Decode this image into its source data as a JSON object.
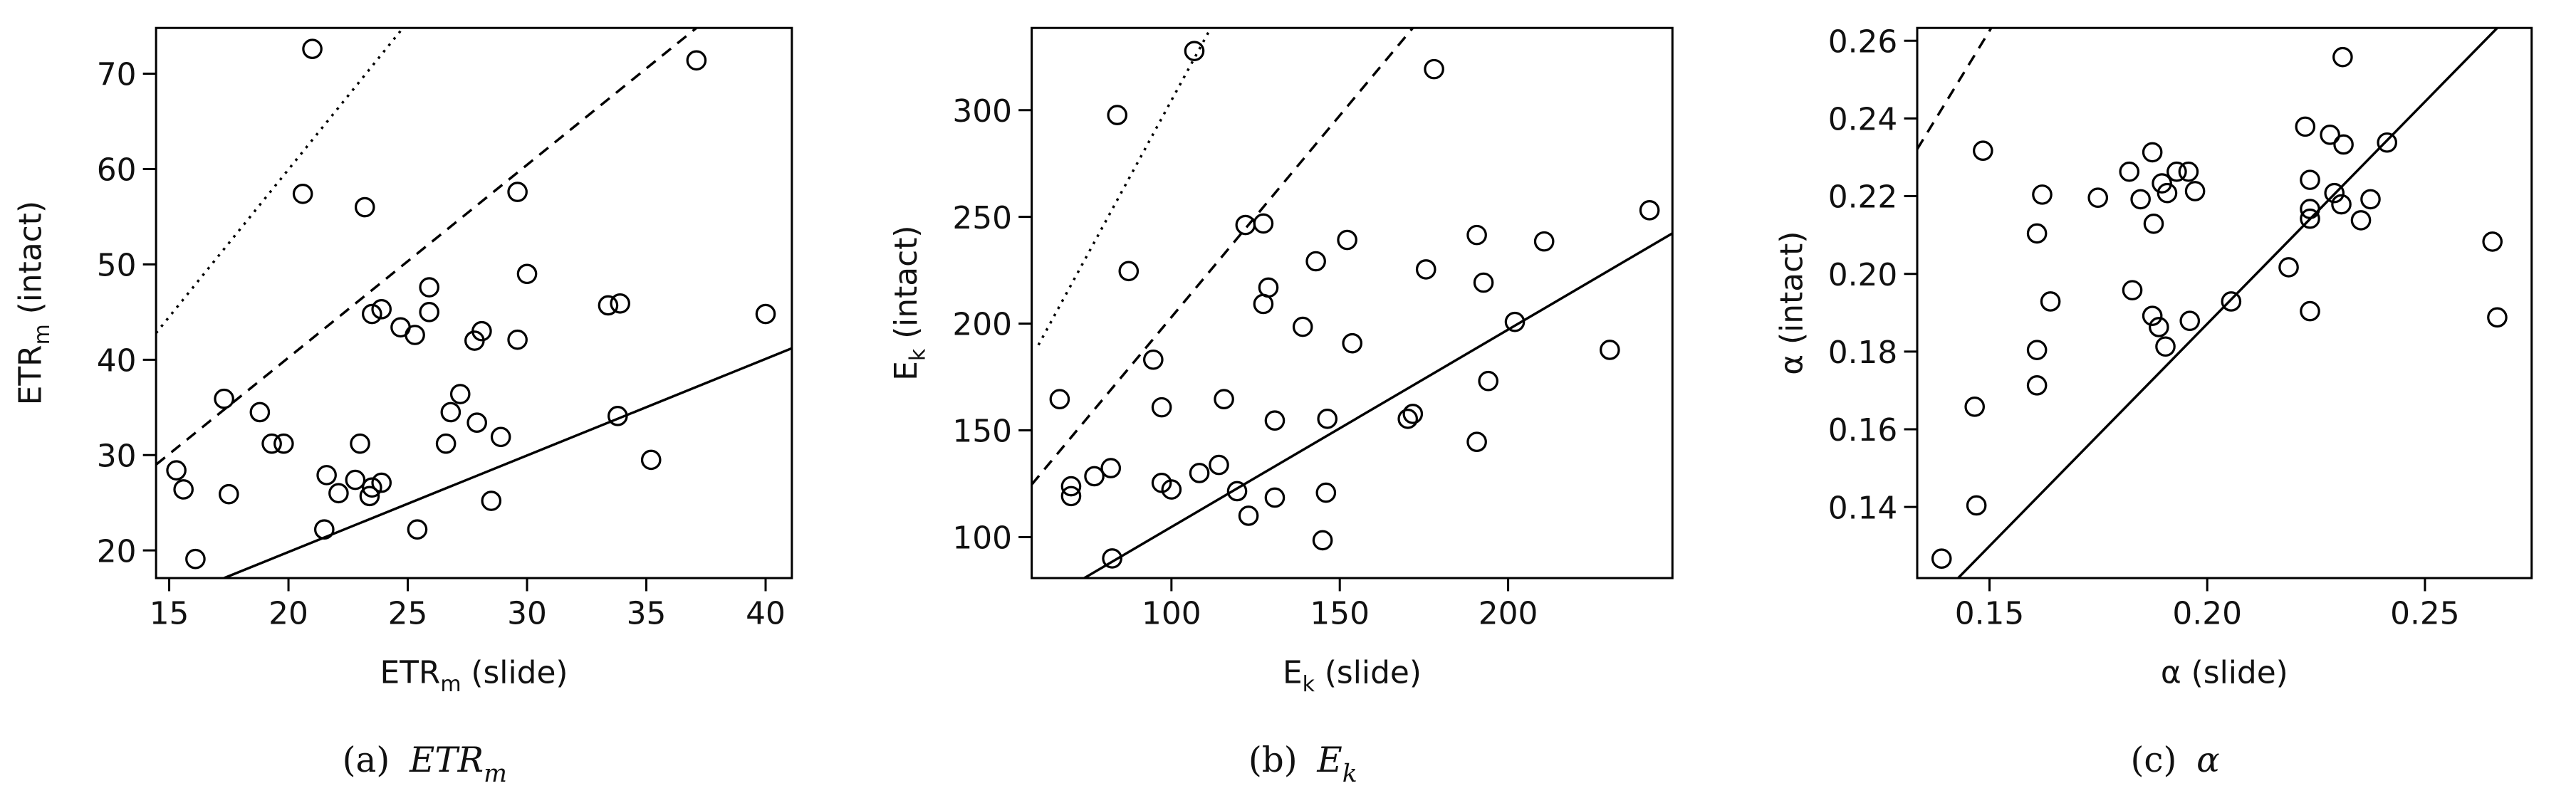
{
  "chart_data": [
    {
      "type": "scatter",
      "x_label": {
        "main": "ETR",
        "sub": "m",
        "rest": "(slide)"
      },
      "y_label": {
        "main": "ETR",
        "sub": "m",
        "rest": "(intact)"
      },
      "caption": {
        "label": "(a)",
        "symbol": "ETR",
        "sub": "m"
      },
      "xlim": [
        14.45,
        41.1
      ],
      "ylim": [
        17.1,
        74.8
      ],
      "xticks": [
        15,
        20,
        25,
        30,
        35,
        40
      ],
      "yticks": [
        20,
        30,
        40,
        50,
        60,
        70
      ],
      "x": [
        21.0,
        37.1,
        20.6,
        29.6,
        23.2,
        30.0,
        25.9,
        25.9,
        33.4,
        33.9,
        40.0,
        28.1,
        27.8,
        25.3,
        29.6,
        23.5,
        23.9,
        24.7,
        27.2,
        17.3,
        18.8,
        26.8,
        27.9,
        33.8,
        19.3,
        19.8,
        23.0,
        26.6,
        28.9,
        15.3,
        21.6,
        22.8,
        23.9,
        23.5,
        15.6,
        17.5,
        22.1,
        23.4,
        28.5,
        35.2,
        21.5,
        25.4,
        16.1
      ],
      "values": [
        72.6,
        71.4,
        57.4,
        57.6,
        56.0,
        49.0,
        47.6,
        45.0,
        45.7,
        45.9,
        44.8,
        43.0,
        42.0,
        42.6,
        42.1,
        44.8,
        45.3,
        43.4,
        36.4,
        35.9,
        34.5,
        34.5,
        33.4,
        34.1,
        31.2,
        31.2,
        31.2,
        31.2,
        31.9,
        28.4,
        27.9,
        27.4,
        27.1,
        26.6,
        26.4,
        25.9,
        26.0,
        25.7,
        25.2,
        29.5,
        22.2,
        22.2,
        19.1
      ],
      "reference_lines": [
        {
          "style": "solid",
          "x": [
            17.3,
            41.1
          ],
          "y": [
            17.1,
            41.2
          ]
        },
        {
          "style": "dashed",
          "x": [
            14.45,
            37.1
          ],
          "y": [
            29.0,
            74.8
          ]
        },
        {
          "style": "dotted",
          "x": [
            14.45,
            24.8
          ],
          "y": [
            42.8,
            74.8
          ]
        }
      ]
    },
    {
      "type": "scatter",
      "x_label": {
        "main": "E",
        "sub": "k",
        "rest": "(slide)"
      },
      "y_label": {
        "main": "E",
        "sub": "k",
        "rest": "(intact)"
      },
      "caption": {
        "label": "(b)",
        "symbol": "E",
        "sub": "k"
      },
      "xlim": [
        58.5,
        248.8
      ],
      "ylim": [
        80.8,
        338.5
      ],
      "xticks": [
        100,
        150,
        200
      ],
      "yticks": [
        100,
        150,
        200,
        250,
        300
      ],
      "x": [
        106.8,
        178.0,
        83.9,
        242.0,
        122.0,
        127.3,
        152.2,
        190.7,
        210.7,
        87.3,
        142.9,
        175.6,
        139.0,
        128.8,
        127.3,
        192.7,
        202.0,
        153.7,
        230.2,
        94.6,
        194.1,
        66.8,
        115.6,
        97.1,
        130.7,
        146.3,
        171.7,
        170.2,
        190.7,
        82.0,
        114.1,
        108.3,
        77.1,
        70.2,
        70.2,
        97.1,
        100.0,
        119.5,
        130.7,
        145.9,
        122.9,
        144.9,
        82.4
      ],
      "values": [
        327.7,
        319.2,
        297.7,
        253.1,
        246.2,
        246.9,
        239.2,
        241.5,
        238.5,
        224.6,
        229.2,
        225.4,
        198.5,
        216.9,
        209.2,
        219.2,
        200.8,
        190.8,
        187.7,
        183.1,
        173.1,
        164.6,
        164.6,
        160.8,
        154.6,
        155.4,
        157.7,
        155.4,
        144.6,
        132.3,
        133.8,
        130.0,
        128.5,
        123.8,
        119.2,
        125.4,
        122.3,
        121.5,
        118.5,
        120.8,
        110.0,
        98.5,
        90.0
      ],
      "reference_lines": [
        {
          "style": "solid",
          "x": [
            74.1,
            248.8
          ],
          "y": [
            80.8,
            242.3
          ]
        },
        {
          "style": "dashed",
          "x": [
            58.5,
            171.7
          ],
          "y": [
            124.6,
            338.5
          ]
        },
        {
          "style": "dotted",
          "x": [
            60.5,
            111.7
          ],
          "y": [
            190.0,
            338.5
          ]
        }
      ]
    },
    {
      "type": "scatter",
      "x_label": {
        "main": "α",
        "rest": "(slide)"
      },
      "y_label": {
        "main": "α",
        "rest": "(intact)"
      },
      "caption": {
        "label": "(c)",
        "symbol": "α"
      },
      "xlim": [
        0.1334,
        0.2745
      ],
      "ylim": [
        0.1217,
        0.2633
      ],
      "xticks": [
        0.15,
        {
          "value": 0.2,
          "label": "0.20"
        },
        0.25
      ],
      "yticks": [
        0.14,
        0.16,
        0.18,
        {
          "value": 0.2,
          "label": "0.20"
        },
        0.22,
        0.24,
        0.26
      ],
      "x": [
        0.2311,
        0.1485,
        0.1874,
        0.2282,
        0.2313,
        0.2413,
        0.2225,
        0.193,
        0.1957,
        0.1821,
        0.1896,
        0.2236,
        0.1621,
        0.1749,
        0.1908,
        0.1972,
        0.1847,
        0.2292,
        0.2308,
        0.2375,
        0.2236,
        0.2236,
        0.2353,
        0.1877,
        0.1609,
        0.2187,
        0.164,
        0.2055,
        0.1828,
        0.1874,
        0.196,
        0.1889,
        0.2236,
        0.2655,
        0.2666,
        0.1609,
        0.1609,
        0.1904,
        0.1466,
        0.147,
        0.139
      ],
      "values": [
        0.2558,
        0.2317,
        0.2313,
        0.2358,
        0.2333,
        0.2338,
        0.2379,
        0.2263,
        0.2263,
        0.2263,
        0.2233,
        0.2242,
        0.2204,
        0.2196,
        0.2208,
        0.2213,
        0.2192,
        0.2208,
        0.2179,
        0.2192,
        0.2167,
        0.2142,
        0.2138,
        0.2129,
        0.2104,
        0.2017,
        0.1929,
        0.1929,
        0.1958,
        0.1892,
        0.1879,
        0.1863,
        0.1904,
        0.2083,
        0.1888,
        0.1804,
        0.1713,
        0.1813,
        0.1658,
        0.1404,
        0.1267
      ],
      "reference_lines": [
        {
          "style": "solid",
          "x": [
            0.1428,
            0.2666
          ],
          "y": [
            0.1217,
            0.2633
          ]
        },
        {
          "style": "dashed",
          "x": [
            0.1334,
            0.1504
          ],
          "y": [
            0.2321,
            0.2633
          ]
        }
      ]
    }
  ]
}
